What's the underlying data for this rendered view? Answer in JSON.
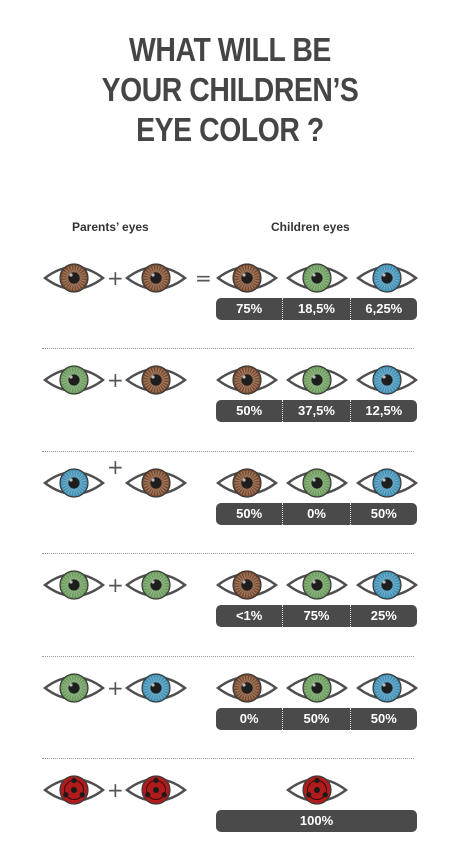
{
  "title": [
    "WHAT WILL BE",
    "YOUR CHILDREN’S",
    "EYE COLOR ?"
  ],
  "headers": {
    "parents": "Parents’ eyes",
    "children": "Children eyes"
  },
  "colors": {
    "brown": "#7a4a2c",
    "green": "#6a9a5a",
    "blue": "#3f8fb4",
    "red": "#b01b1b",
    "bar": "#4a4a4a"
  },
  "rows": [
    {
      "parents": [
        "brown",
        "brown"
      ],
      "plus": "+",
      "equals": "=",
      "children": [
        "brown",
        "green",
        "blue"
      ],
      "percents": [
        "75%",
        "18,5%",
        "6,25%"
      ]
    },
    {
      "parents": [
        "green",
        "brown"
      ],
      "plus": "+",
      "children": [
        "brown",
        "green",
        "blue"
      ],
      "percents": [
        "50%",
        "37,5%",
        "12,5%"
      ]
    },
    {
      "parents": [
        "blue",
        "brown"
      ],
      "plus": "+",
      "children": [
        "brown",
        "green",
        "blue"
      ],
      "percents": [
        "50%",
        "0%",
        "50%"
      ]
    },
    {
      "parents": [
        "green",
        "green"
      ],
      "plus": "+",
      "children": [
        "brown",
        "green",
        "blue"
      ],
      "percents": [
        "<1%",
        "75%",
        "25%"
      ]
    },
    {
      "parents": [
        "green",
        "blue"
      ],
      "plus": "+",
      "children": [
        "brown",
        "green",
        "blue"
      ],
      "percents": [
        "0%",
        "50%",
        "50%"
      ]
    },
    {
      "parents": [
        "red",
        "red"
      ],
      "plus": "+",
      "children": [
        "red"
      ],
      "percents": [
        "100%"
      ]
    }
  ]
}
